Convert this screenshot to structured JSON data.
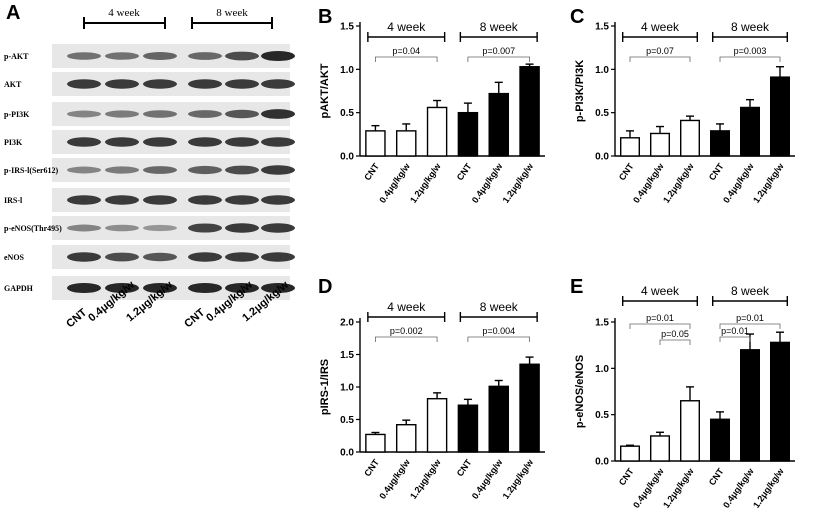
{
  "panels": {
    "A": "A",
    "B": "B",
    "C": "C",
    "D": "D",
    "E": "E"
  },
  "blot": {
    "header_4week": "4 week",
    "header_8week": "8 week",
    "rows": [
      {
        "label": "p-AKT",
        "i4": [
          0.55,
          0.55,
          0.62
        ],
        "i8": [
          0.6,
          0.75,
          0.95
        ]
      },
      {
        "label": "AKT",
        "i4": [
          0.85,
          0.85,
          0.85
        ],
        "i8": [
          0.85,
          0.85,
          0.85
        ]
      },
      {
        "label": "p-PI3K",
        "i4": [
          0.45,
          0.5,
          0.55
        ],
        "i8": [
          0.6,
          0.7,
          0.9
        ]
      },
      {
        "label": "PI3K",
        "i4": [
          0.85,
          0.85,
          0.85
        ],
        "i8": [
          0.85,
          0.85,
          0.85
        ]
      },
      {
        "label": "p-IRS-l(Ser612)",
        "i4": [
          0.45,
          0.5,
          0.6
        ],
        "i8": [
          0.65,
          0.75,
          0.85
        ]
      },
      {
        "label": "IRS-l",
        "i4": [
          0.85,
          0.85,
          0.85
        ],
        "i8": [
          0.85,
          0.85,
          0.85
        ]
      },
      {
        "label": "p-eNOS(Thr495)",
        "i4": [
          0.45,
          0.4,
          0.35
        ],
        "i8": [
          0.8,
          0.85,
          0.85
        ]
      },
      {
        "label": "eNOS",
        "i4": [
          0.85,
          0.75,
          0.7
        ],
        "i8": [
          0.85,
          0.85,
          0.85
        ]
      },
      {
        "label": "GAPDH",
        "i4": [
          0.95,
          0.95,
          0.95
        ],
        "i8": [
          0.95,
          0.95,
          0.95
        ]
      }
    ],
    "lane_labels": [
      "CNT",
      "0.4μg/kg/w",
      "1.2μg/kg/w",
      "CNT",
      "0.4μg/kg/w",
      "1.2μg/kg/w"
    ]
  },
  "chart_data": [
    {
      "panel": "B",
      "type": "bar",
      "categories": [
        "CNT",
        "0.4μg/kg/w",
        "1.2μg/kg/w",
        "CNT",
        "0.4μg/kg/w",
        "1.2μg/kg/w"
      ],
      "values": [
        0.29,
        0.29,
        0.56,
        0.5,
        0.72,
        1.03
      ],
      "errors": [
        0.06,
        0.08,
        0.08,
        0.11,
        0.13,
        0.03
      ],
      "fill": [
        "white",
        "white",
        "white",
        "black",
        "black",
        "black"
      ],
      "ylabel": "pAKT/AKT",
      "ylim": [
        0,
        1.5
      ],
      "yticks": [
        "0.0",
        "0.5",
        "1.0",
        "1.5"
      ],
      "groups": [
        {
          "label": "4 week",
          "p": "p=0.04"
        },
        {
          "label": "8 week",
          "p": "p=0.007"
        }
      ]
    },
    {
      "panel": "C",
      "type": "bar",
      "categories": [
        "CNT",
        "0.4μg/kg/w",
        "1.2μg/kg/w",
        "CNT",
        "0.4μg/kg/w",
        "1.2μg/kg/w"
      ],
      "values": [
        0.21,
        0.26,
        0.41,
        0.29,
        0.56,
        0.91
      ],
      "errors": [
        0.08,
        0.08,
        0.05,
        0.08,
        0.09,
        0.12
      ],
      "fill": [
        "white",
        "white",
        "white",
        "black",
        "black",
        "black"
      ],
      "ylabel": "p-PI3K/PI3K",
      "ylim": [
        0,
        1.5
      ],
      "yticks": [
        "0.0",
        "0.5",
        "1.0",
        "1.5"
      ],
      "groups": [
        {
          "label": "4 week",
          "p": "p=0.07"
        },
        {
          "label": "8 week",
          "p": "p=0.003"
        }
      ]
    },
    {
      "panel": "D",
      "type": "bar",
      "categories": [
        "CNT",
        "0.4μg/kg/w",
        "1.2μg/kg/w",
        "CNT",
        "0.4μg/kg/w",
        "1.2μg/kg/w"
      ],
      "values": [
        0.27,
        0.42,
        0.82,
        0.72,
        1.01,
        1.35
      ],
      "errors": [
        0.03,
        0.07,
        0.09,
        0.09,
        0.09,
        0.11
      ],
      "fill": [
        "white",
        "white",
        "white",
        "black",
        "black",
        "black"
      ],
      "ylabel": "pIRS-1/IRS",
      "ylim": [
        0,
        2.0
      ],
      "yticks": [
        "0.0",
        "0.5",
        "1.0",
        "1.5",
        "2.0"
      ],
      "groups": [
        {
          "label": "4 week",
          "p": "p=0.002"
        },
        {
          "label": "8 week",
          "p": "p=0.004"
        }
      ]
    },
    {
      "panel": "E",
      "type": "bar",
      "categories": [
        "CNT",
        "0.4μg/kg/w",
        "1.2μg/kg/w",
        "CNT",
        "0.4μg/kg/w",
        "1.2μg/kg/w"
      ],
      "values": [
        0.16,
        0.27,
        0.65,
        0.45,
        1.2,
        1.28
      ],
      "errors": [
        0.01,
        0.04,
        0.15,
        0.08,
        0.17,
        0.11
      ],
      "fill": [
        "white",
        "white",
        "white",
        "black",
        "black",
        "black"
      ],
      "ylabel": "p-eNOS/eNOS",
      "ylim": [
        0,
        1.5
      ],
      "yticks": [
        "0.0",
        "0.5",
        "1.0",
        "1.5"
      ],
      "groups": [
        {
          "label": "4 week"
        },
        {
          "label": "8 week"
        }
      ],
      "sig": [
        {
          "from": 0,
          "to": 2,
          "p": "p=0.01"
        },
        {
          "from": 1,
          "to": 2,
          "p": "p=0.05"
        },
        {
          "from": 3,
          "to": 4,
          "p": "p=0.01"
        },
        {
          "from": 3,
          "to": 5,
          "p": "p=0.01"
        }
      ]
    }
  ]
}
